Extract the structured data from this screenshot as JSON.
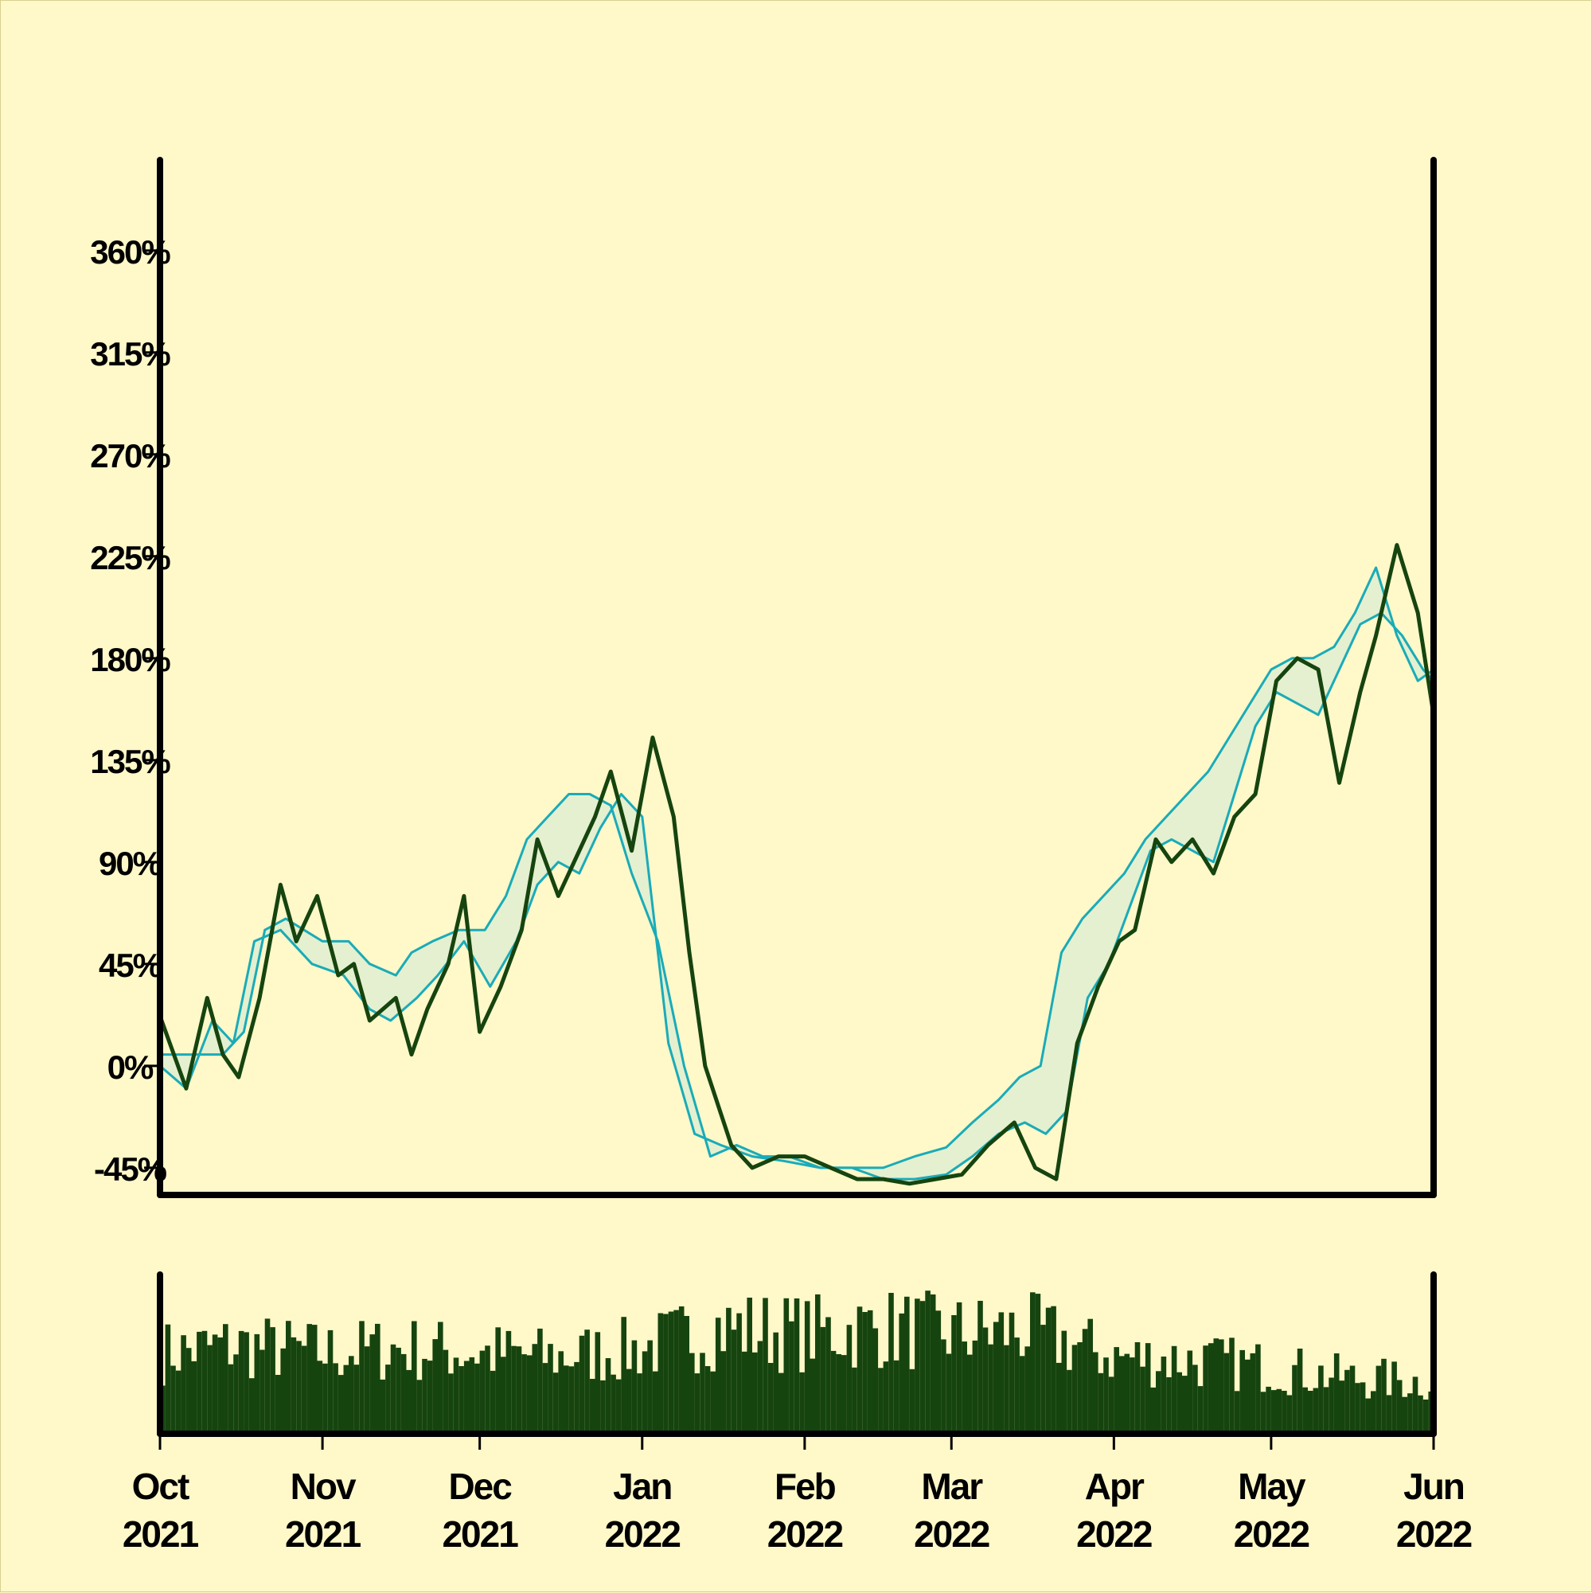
{
  "chart_data": {
    "type": "line",
    "title": "",
    "xlabel": "",
    "ylabel": "",
    "ylim": [
      -57,
      400
    ],
    "y_ticks": [
      -45,
      0,
      45,
      90,
      135,
      180,
      225,
      270,
      315,
      360
    ],
    "y_tick_labels": [
      "-45%",
      "0%",
      "45%",
      "90%",
      "135%",
      "180%",
      "225%",
      "270%",
      "315%",
      "360%"
    ],
    "x_range": [
      "2021-10-01",
      "2022-06-01"
    ],
    "x_ticks": [
      {
        "date": "2021-10-01",
        "month": "Oct",
        "year": "2021"
      },
      {
        "date": "2021-11-01",
        "month": "Nov",
        "year": "2021"
      },
      {
        "date": "2021-12-01",
        "month": "Dec",
        "year": "2021"
      },
      {
        "date": "2022-01-01",
        "month": "Jan",
        "year": "2022"
      },
      {
        "date": "2022-02-01",
        "month": "Feb",
        "year": "2022"
      },
      {
        "date": "2022-03-01",
        "month": "Mar",
        "year": "2022"
      },
      {
        "date": "2022-04-01",
        "month": "Apr",
        "year": "2022"
      },
      {
        "date": "2022-05-01",
        "month": "May",
        "year": "2022"
      },
      {
        "date": "2022-06-01",
        "month": "Jun",
        "year": "2022"
      }
    ],
    "grid": false,
    "legend": "none",
    "colors": {
      "price": "#16440f",
      "band": "#1aabb8",
      "band_fill": "#e4f0cf",
      "volume": "#16440f",
      "axis": "#000000",
      "background": "#fff8c9"
    },
    "price_series": {
      "x": [
        "2021-10-01",
        "2021-10-06",
        "2021-10-10",
        "2021-10-13",
        "2021-10-16",
        "2021-10-20",
        "2021-10-24",
        "2021-10-27",
        "2021-10-31",
        "2021-11-04",
        "2021-11-07",
        "2021-11-10",
        "2021-11-15",
        "2021-11-18",
        "2021-11-21",
        "2021-11-25",
        "2021-11-28",
        "2021-12-01",
        "2021-12-05",
        "2021-12-09",
        "2021-12-12",
        "2021-12-16",
        "2021-12-19",
        "2021-12-23",
        "2021-12-26",
        "2021-12-30",
        "2022-01-03",
        "2022-01-07",
        "2022-01-10",
        "2022-01-13",
        "2022-01-18",
        "2022-01-22",
        "2022-01-27",
        "2022-02-01",
        "2022-02-06",
        "2022-02-11",
        "2022-02-16",
        "2022-02-21",
        "2022-02-26",
        "2022-03-03",
        "2022-03-08",
        "2022-03-13",
        "2022-03-17",
        "2022-03-21",
        "2022-03-25",
        "2022-03-29",
        "2022-04-02",
        "2022-04-05",
        "2022-04-09",
        "2022-04-12",
        "2022-04-16",
        "2022-04-20",
        "2022-04-24",
        "2022-04-28",
        "2022-05-02",
        "2022-05-06",
        "2022-05-10",
        "2022-05-14",
        "2022-05-18",
        "2022-05-21",
        "2022-05-25",
        "2022-05-29",
        "2022-06-01"
      ],
      "y": [
        22,
        -10,
        30,
        5,
        -5,
        30,
        80,
        55,
        75,
        40,
        45,
        20,
        30,
        5,
        25,
        45,
        75,
        15,
        35,
        60,
        100,
        75,
        90,
        110,
        130,
        95,
        145,
        110,
        50,
        0,
        -35,
        -45,
        -40,
        -40,
        -45,
        -50,
        -50,
        -52,
        -50,
        -48,
        -35,
        -25,
        -45,
        -50,
        10,
        35,
        55,
        60,
        100,
        90,
        100,
        85,
        110,
        120,
        170,
        180,
        175,
        125,
        165,
        190,
        230,
        200,
        155
      ]
    },
    "band_upper": {
      "x": [
        "2021-10-01",
        "2021-10-07",
        "2021-10-13",
        "2021-10-17",
        "2021-10-21",
        "2021-10-25",
        "2021-11-01",
        "2021-11-06",
        "2021-11-10",
        "2021-11-15",
        "2021-11-18",
        "2021-11-22",
        "2021-11-27",
        "2021-12-02",
        "2021-12-06",
        "2021-12-10",
        "2021-12-14",
        "2021-12-18",
        "2021-12-22",
        "2021-12-26",
        "2021-12-30",
        "2022-01-04",
        "2022-01-09",
        "2022-01-14",
        "2022-01-19",
        "2022-01-24",
        "2022-01-29",
        "2022-02-04",
        "2022-02-10",
        "2022-02-16",
        "2022-02-22",
        "2022-02-28",
        "2022-03-05",
        "2022-03-10",
        "2022-03-14",
        "2022-03-18",
        "2022-03-22",
        "2022-03-26",
        "2022-03-30",
        "2022-04-03",
        "2022-04-07",
        "2022-04-11",
        "2022-04-15",
        "2022-04-19",
        "2022-04-23",
        "2022-04-27",
        "2022-05-01",
        "2022-05-05",
        "2022-05-09",
        "2022-05-13",
        "2022-05-17",
        "2022-05-21",
        "2022-05-25",
        "2022-05-29",
        "2022-06-01"
      ],
      "y": [
        5,
        5,
        5,
        15,
        60,
        65,
        55,
        55,
        45,
        40,
        50,
        55,
        60,
        60,
        75,
        100,
        110,
        120,
        120,
        115,
        85,
        55,
        0,
        -40,
        -35,
        -40,
        -40,
        -45,
        -45,
        -45,
        -40,
        -36,
        -25,
        -15,
        -5,
        0,
        50,
        65,
        75,
        85,
        100,
        110,
        120,
        130,
        145,
        160,
        175,
        180,
        180,
        185,
        200,
        220,
        190,
        170,
        175
      ]
    },
    "band_lower": {
      "x": [
        "2021-10-01",
        "2021-10-06",
        "2021-10-11",
        "2021-10-15",
        "2021-10-19",
        "2021-10-24",
        "2021-10-30",
        "2021-11-05",
        "2021-11-10",
        "2021-11-14",
        "2021-11-19",
        "2021-11-23",
        "2021-11-28",
        "2021-12-03",
        "2021-12-08",
        "2021-12-12",
        "2021-12-16",
        "2021-12-20",
        "2021-12-24",
        "2021-12-28",
        "2022-01-01",
        "2022-01-06",
        "2022-01-11",
        "2022-01-16",
        "2022-01-22",
        "2022-01-28",
        "2022-02-04",
        "2022-02-10",
        "2022-02-16",
        "2022-02-22",
        "2022-02-28",
        "2022-03-05",
        "2022-03-10",
        "2022-03-15",
        "2022-03-19",
        "2022-03-23",
        "2022-03-27",
        "2022-03-31",
        "2022-04-04",
        "2022-04-08",
        "2022-04-12",
        "2022-04-16",
        "2022-04-20",
        "2022-04-24",
        "2022-04-28",
        "2022-05-02",
        "2022-05-06",
        "2022-05-10",
        "2022-05-14",
        "2022-05-18",
        "2022-05-22",
        "2022-05-26",
        "2022-05-30",
        "2022-06-01"
      ],
      "y": [
        0,
        -10,
        20,
        10,
        55,
        60,
        45,
        40,
        25,
        20,
        30,
        40,
        55,
        35,
        55,
        80,
        90,
        85,
        105,
        120,
        110,
        10,
        -30,
        -35,
        -40,
        -42,
        -45,
        -45,
        -50,
        -50,
        -48,
        -40,
        -30,
        -25,
        -30,
        -20,
        30,
        45,
        70,
        95,
        100,
        95,
        90,
        120,
        150,
        165,
        160,
        155,
        175,
        195,
        200,
        190,
        175,
        170
      ]
    },
    "volume": {
      "ylim": [
        0,
        100
      ],
      "x": [
        "2021-10-01",
        "2021-10-15",
        "2021-11-01",
        "2021-11-15",
        "2021-12-01",
        "2021-12-15",
        "2022-01-01",
        "2022-01-15",
        "2022-02-01",
        "2022-02-15",
        "2022-03-01",
        "2022-03-15",
        "2022-04-01",
        "2022-04-15",
        "2022-05-01",
        "2022-05-15",
        "2022-06-01"
      ],
      "y": [
        55,
        60,
        55,
        58,
        55,
        52,
        58,
        72,
        68,
        72,
        68,
        70,
        52,
        50,
        45,
        38,
        35
      ]
    }
  }
}
